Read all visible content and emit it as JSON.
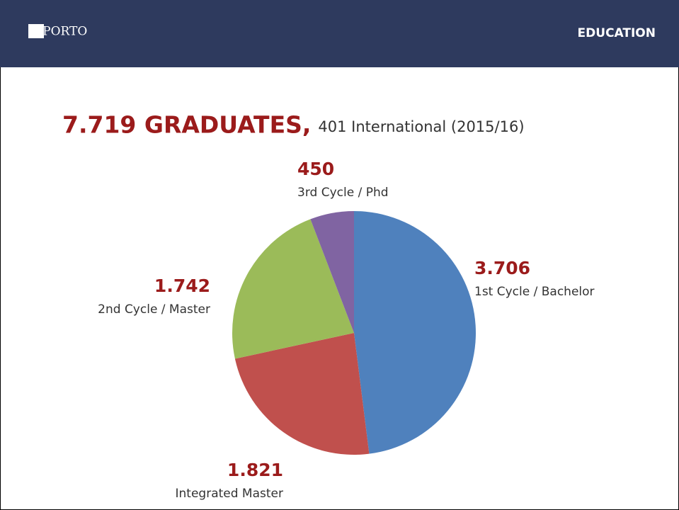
{
  "header": {
    "logo": "U.PORTO",
    "section": "EDUCATION"
  },
  "chart_data": {
    "type": "pie",
    "title": "7.719 GRADUATES,",
    "subtitle": "401 International (2015/16)",
    "categories": [
      "1st Cycle / Bachelor",
      "Integrated Master",
      "2nd Cycle / Master",
      "3rd Cycle / Phd"
    ],
    "values": [
      3706,
      1821,
      1742,
      450
    ],
    "value_labels": [
      "3.706",
      "1.821",
      "1.742",
      "450"
    ],
    "colors": [
      "#4f81bd",
      "#c0504d",
      "#9bbb59",
      "#8064a2"
    ]
  }
}
